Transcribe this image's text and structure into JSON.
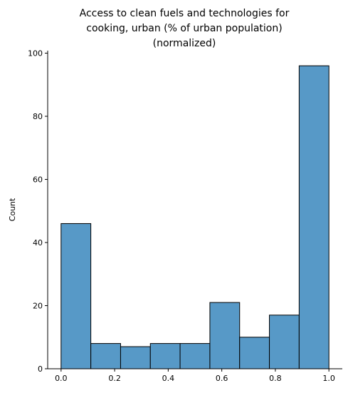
{
  "chart_data": {
    "type": "bar",
    "title_lines": [
      "Access to clean fuels and technologies for",
      "cooking, urban (% of urban population)",
      "(normalized)"
    ],
    "xlabel": "",
    "ylabel": "Count",
    "bin_edges": [
      0.0,
      0.1111,
      0.2222,
      0.3333,
      0.4444,
      0.5556,
      0.6667,
      0.7778,
      0.8889,
      1.0
    ],
    "values": [
      46,
      8,
      7,
      8,
      8,
      21,
      10,
      17,
      96
    ],
    "xlim": [
      -0.05,
      1.05
    ],
    "ylim": [
      0,
      100.8
    ],
    "xticks": [
      0.0,
      0.2,
      0.4,
      0.6,
      0.8,
      1.0
    ],
    "xtick_labels": [
      "0.0",
      "0.2",
      "0.4",
      "0.6",
      "0.8",
      "1.0"
    ],
    "yticks": [
      0,
      20,
      40,
      60,
      80,
      100
    ],
    "ytick_labels": [
      "0",
      "20",
      "40",
      "60",
      "80",
      "100"
    ],
    "bar_color": "#5799c7",
    "bar_edge_color": "#000000",
    "grid": false,
    "legend": "none"
  }
}
